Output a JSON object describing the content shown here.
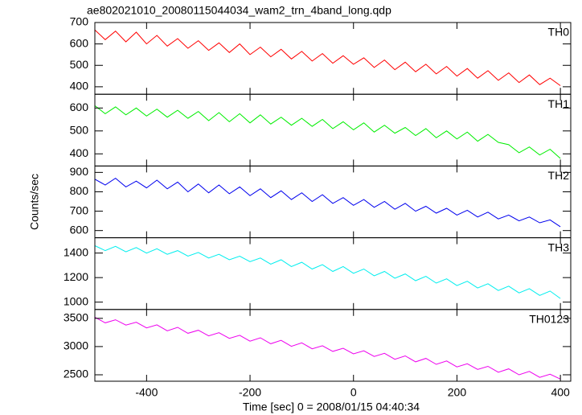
{
  "chart_data": {
    "type": "line",
    "title": "ae802021010_20080115044034_wam2_trn_4band_long.qdp",
    "xlabel": "Time [sec] 0 = 2008/01/15 04:40:34",
    "ylabel": "Counts/sec",
    "xlim": [
      -500,
      420
    ],
    "xticks": [
      -400,
      -200,
      0,
      200,
      400
    ],
    "x": [
      -500,
      -480,
      -460,
      -440,
      -420,
      -400,
      -380,
      -360,
      -340,
      -320,
      -300,
      -280,
      -260,
      -240,
      -220,
      -200,
      -180,
      -160,
      -140,
      -120,
      -100,
      -80,
      -60,
      -40,
      -20,
      0,
      20,
      40,
      60,
      80,
      100,
      120,
      140,
      160,
      180,
      200,
      220,
      240,
      260,
      280,
      300,
      320,
      340,
      360,
      380,
      400
    ],
    "series": [
      {
        "name": "TH0",
        "color": "#ff0000",
        "ylim": [
          365,
          700
        ],
        "yticks": [
          400,
          500,
          600,
          700
        ],
        "values": [
          665,
          620,
          660,
          610,
          655,
          600,
          640,
          590,
          625,
          580,
          615,
          570,
          605,
          560,
          600,
          550,
          585,
          540,
          575,
          530,
          565,
          520,
          555,
          510,
          545,
          505,
          535,
          490,
          525,
          480,
          515,
          470,
          505,
          460,
          495,
          450,
          485,
          440,
          475,
          430,
          465,
          420,
          455,
          410,
          440,
          405
        ]
      },
      {
        "name": "TH1",
        "color": "#00ee00",
        "ylim": [
          347,
          660
        ],
        "yticks": [
          400,
          500,
          600
        ],
        "values": [
          610,
          575,
          605,
          570,
          600,
          565,
          595,
          560,
          590,
          555,
          585,
          545,
          580,
          540,
          575,
          535,
          570,
          530,
          560,
          525,
          555,
          520,
          550,
          510,
          540,
          505,
          535,
          495,
          525,
          490,
          515,
          480,
          510,
          470,
          500,
          465,
          495,
          455,
          485,
          450,
          440,
          405,
          430,
          395,
          420,
          380
        ]
      },
      {
        "name": "TH2",
        "color": "#0000ee",
        "ylim": [
          563,
          933
        ],
        "yticks": [
          600,
          700,
          800,
          900
        ],
        "values": [
          865,
          835,
          870,
          825,
          855,
          820,
          860,
          815,
          850,
          800,
          840,
          795,
          835,
          790,
          825,
          780,
          815,
          770,
          805,
          760,
          795,
          750,
          785,
          740,
          770,
          730,
          760,
          720,
          750,
          710,
          740,
          700,
          725,
          690,
          715,
          680,
          705,
          670,
          695,
          660,
          680,
          650,
          670,
          640,
          655,
          620
        ]
      },
      {
        "name": "TH3",
        "color": "#00eeee",
        "ylim": [
          940,
          1525
        ],
        "yticks": [
          1000,
          1200,
          1400
        ],
        "values": [
          1460,
          1420,
          1455,
          1410,
          1445,
          1400,
          1435,
          1390,
          1420,
          1375,
          1405,
          1360,
          1390,
          1345,
          1375,
          1330,
          1360,
          1310,
          1345,
          1290,
          1325,
          1270,
          1305,
          1250,
          1290,
          1235,
          1270,
          1215,
          1250,
          1195,
          1230,
          1175,
          1210,
          1155,
          1190,
          1135,
          1170,
          1115,
          1150,
          1095,
          1130,
          1075,
          1110,
          1055,
          1090,
          1030
        ]
      },
      {
        "name": "TH0123",
        "color": "#ee00ee",
        "ylim": [
          2386,
          3657
        ],
        "yticks": [
          2500,
          3000,
          3500
        ],
        "values": [
          3520,
          3420,
          3475,
          3380,
          3430,
          3330,
          3385,
          3280,
          3340,
          3235,
          3290,
          3190,
          3245,
          3145,
          3200,
          3095,
          3155,
          3050,
          3110,
          3005,
          3065,
          2960,
          3015,
          2915,
          2970,
          2870,
          2925,
          2825,
          2880,
          2775,
          2835,
          2730,
          2790,
          2685,
          2745,
          2640,
          2695,
          2595,
          2650,
          2545,
          2605,
          2500,
          2560,
          2455,
          2510,
          2425
        ]
      }
    ]
  }
}
